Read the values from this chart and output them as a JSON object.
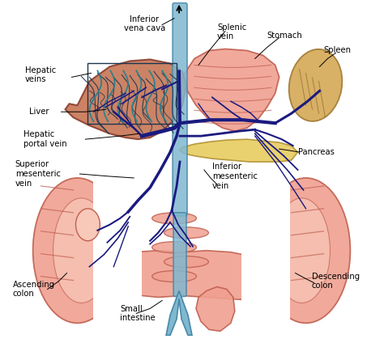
{
  "background_color": "#ffffff",
  "figsize": [
    4.74,
    4.24
  ],
  "dpi": 100,
  "labels": {
    "inferior_vena_cava": "Inferior\nvena cava",
    "splenic_vein": "Splenic\nvein",
    "stomach": "Stomach",
    "spleen": "Spleen",
    "hepatic_veins": "Hepatic\nveins",
    "liver": "Liver",
    "hepatic_portal_vein": "Hepatic\nportal vein",
    "superior_mesenteric_vein": "Superior\nmesenteric\nvein",
    "pancreas": "Pancreas",
    "inferior_mesenteric_vein": "Inferior\nmesenteric\nvein",
    "ascending_colon": "Ascending\ncolon",
    "small_intestine": "Small\nintestine",
    "descending_colon": "Descending\ncolon"
  },
  "colors": {
    "liver_fill": "#C87858",
    "liver_edge": "#8B4030",
    "organ_fill": "#F0A090",
    "organ_edge": "#C06050",
    "spleen_fill": "#D4A855",
    "spleen_edge": "#A07830",
    "pancreas_fill": "#E8CC60",
    "pancreas_edge": "#B09030",
    "vein_dark": "#1a1a80",
    "vein_mid": "#2244AA",
    "vena_cava_fill": "#80B8D0",
    "vena_cava_edge": "#4888A8",
    "text_color": "#000000",
    "inner_colon": "#F8C8B8"
  }
}
